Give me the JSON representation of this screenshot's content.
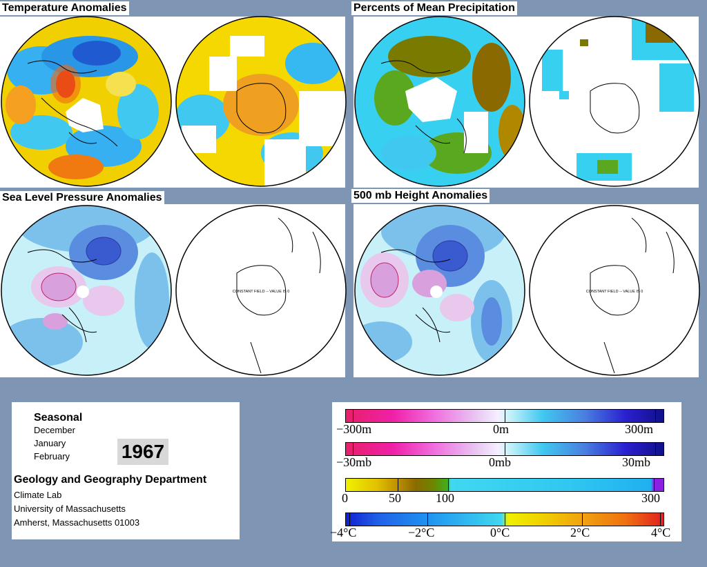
{
  "panels": {
    "temperature": {
      "title": "Temperature Anomalies"
    },
    "precipitation": {
      "title": "Percents of Mean Precipitation"
    },
    "slp": {
      "title": "Sea Level Pressure Anomalies",
      "constant_field_note": "CONSTANT FIELD -- VALUE IS 0"
    },
    "height500": {
      "title": "500 mb Height Anomalies",
      "constant_field_note": "CONSTANT FIELD -- VALUE IS 0"
    }
  },
  "info": {
    "season_label": "Seasonal",
    "months": [
      "December",
      "January",
      "February"
    ],
    "year": "1967",
    "department": "Geology and Geography Department",
    "lab": "Climate Lab",
    "university": "University of Massachusetts",
    "address": "Amherst, Massachusetts 01003"
  },
  "legend": {
    "height_scale": {
      "labels": [
        "−300m",
        "0m",
        "300m"
      ]
    },
    "pressure_scale": {
      "labels": [
        "−30mb",
        "0mb",
        "30mb"
      ]
    },
    "precip_scale": {
      "labels": [
        "0",
        "50",
        "100",
        "300"
      ]
    },
    "temp_scale": {
      "labels": [
        "−4°C",
        "−2°C",
        "0°C",
        "2°C",
        "4°C"
      ]
    }
  },
  "colors": {
    "background": "#7f95b4",
    "temp_warm": "#f5d000",
    "temp_cold": "#2fa8f0",
    "precip_dry": "#7a7a00",
    "precip_wet": "#38d8f0",
    "anomaly_low": "#3858d8",
    "anomaly_high": "#d070c8"
  }
}
